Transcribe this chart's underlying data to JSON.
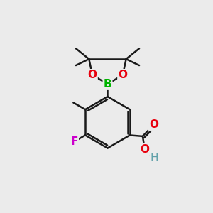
{
  "background_color": "#ebebeb",
  "bond_color": "#1a1a1a",
  "bond_width": 1.8,
  "atom_colors": {
    "O": "#e8000d",
    "B": "#00b300",
    "F": "#cc00cc",
    "H": "#5fa0a8",
    "C": "#1a1a1a"
  },
  "font_size_atom": 11,
  "font_size_methyl": 9.5
}
